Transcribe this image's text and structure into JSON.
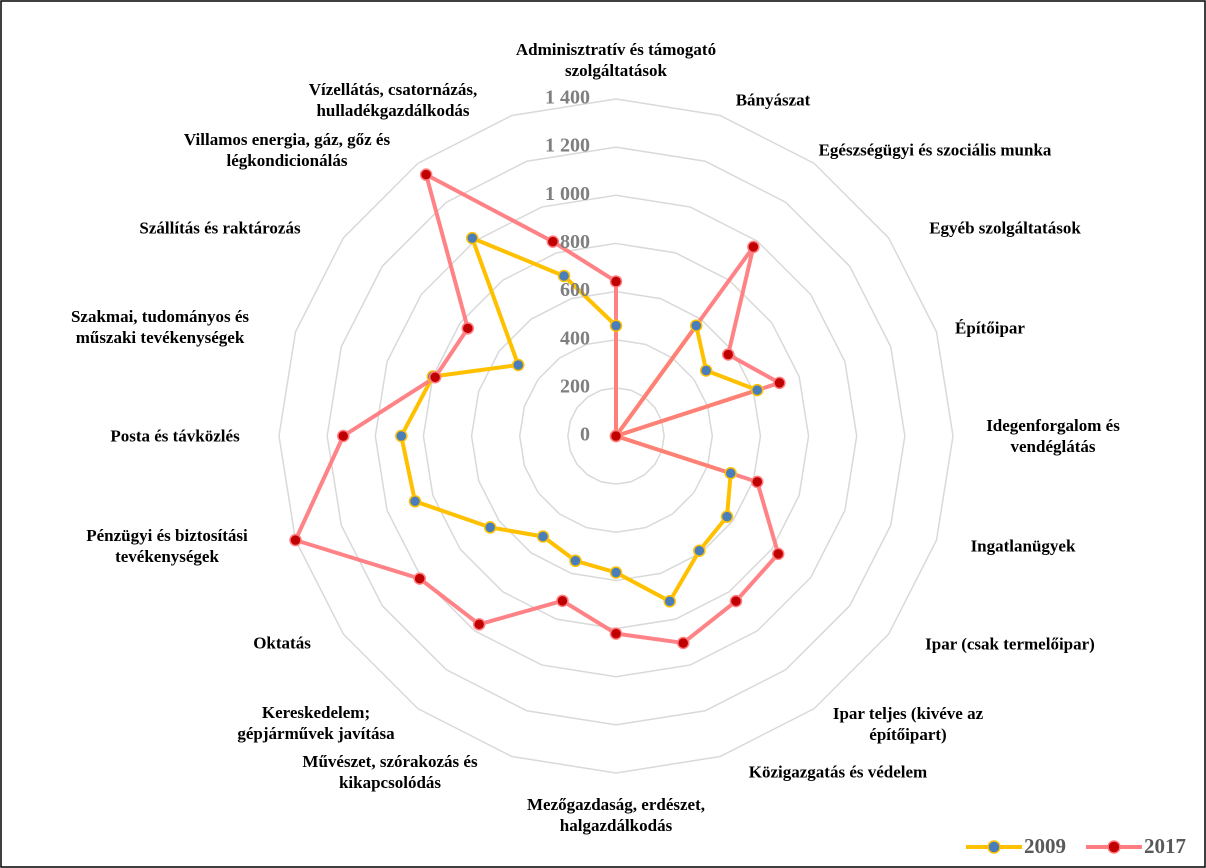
{
  "chart_data": {
    "type": "radar",
    "categories": [
      "Adminisztratív és támogató szolgáltatások",
      "Bányászat",
      "Egészségügyi és szociális munka",
      "Egyéb szolgáltatások",
      "Építőipar",
      "Idegenforgalom és vendéglátás",
      "Ingatlanügyek",
      "Ipar (csak termelőipar)",
      "Ipar teljes (kivéve az építőipart)",
      "Közigazgatás és védelem",
      "Mezőgazdaság, erdészet, halgazdálkodás",
      "Művészet, szórakozás és kikapcsolódás",
      "Kereskedelem; gépjárművek javítása",
      "Oktatás",
      "Pénzügyi és biztosítási tevékenységek",
      "Posta és távközlés",
      "Szakmai, tudományos és műszaki tevékenységek",
      "Szállítás és raktározás",
      "Villamos energia, gáz, gőz és légkondicionálás",
      "Vízellátás, csatornázás, hulladékgazdálkodás"
    ],
    "series": [
      {
        "name": "2009",
        "color": "#ffc000",
        "marker_color": "#4a7ebb",
        "values": [
          458,
          0,
          567,
          463,
          617,
          0,
          501,
          570,
          589,
          722,
          567,
          545,
          516,
          646,
          878,
          892,
          800,
          502,
          1016,
          699
        ]
      },
      {
        "name": "2017",
        "color": "#ff7c80",
        "marker_color": "#c00000",
        "values": [
          642,
          0,
          971,
          576,
          714,
          0,
          617,
          833,
          848,
          904,
          821,
          720,
          967,
          1008,
          1400,
          1133,
          790,
          761,
          1342,
          849
        ]
      }
    ],
    "ylim": [
      0,
      1400
    ],
    "yticks": [
      0,
      200,
      400,
      600,
      800,
      {
        "value": 1000,
        "label": "1 000"
      },
      {
        "value": 1200,
        "label": "1 200"
      },
      {
        "value": 1400,
        "label": "1 400"
      }
    ],
    "grid": true,
    "legend": "bottom-right"
  }
}
